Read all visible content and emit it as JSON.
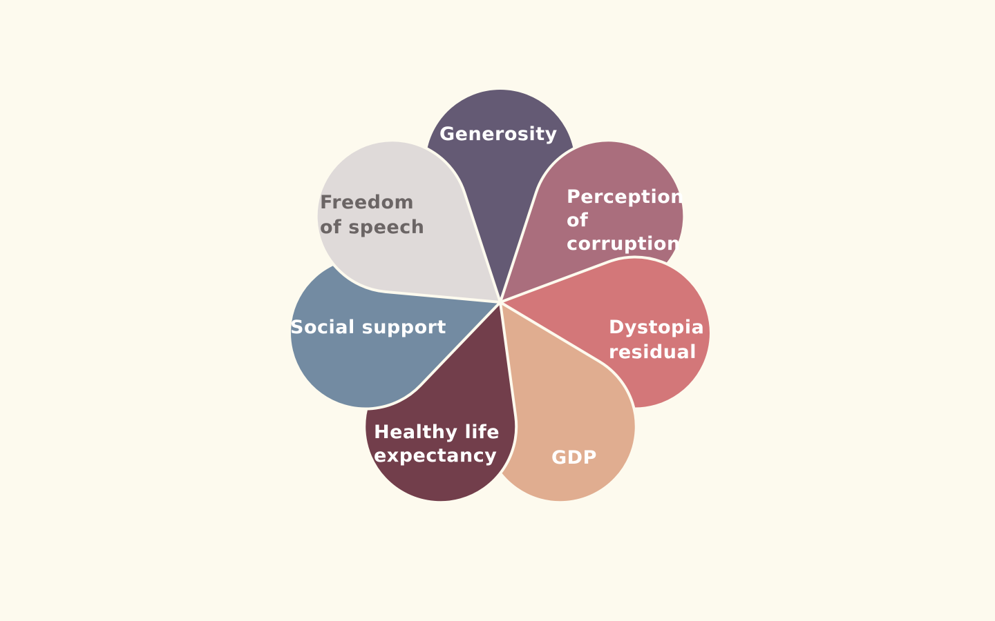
{
  "background_color": "#fdfaee",
  "petals": [
    {
      "id": "generosity",
      "lines": [
        "Generosity"
      ],
      "color": "#645a74",
      "text_color": "#ffffff"
    },
    {
      "id": "perception-corruption",
      "lines": [
        "Perception",
        "of",
        "corruption"
      ],
      "color": "#aa6e7d",
      "text_color": "#ffffff"
    },
    {
      "id": "dystopia-residual",
      "lines": [
        "Dystopia",
        "residual"
      ],
      "color": "#d37779",
      "text_color": "#ffffff"
    },
    {
      "id": "gdp",
      "lines": [
        "GDP"
      ],
      "color": "#e0ad90",
      "text_color": "#ffffff"
    },
    {
      "id": "healthy-life",
      "lines": [
        "Healthy life",
        "expectancy"
      ],
      "color": "#723e4b",
      "text_color": "#ffffff"
    },
    {
      "id": "social-support",
      "lines": [
        "Social support"
      ],
      "color": "#738ba2",
      "text_color": "#ffffff"
    },
    {
      "id": "freedom-speech",
      "lines": [
        "Freedom",
        "of speech"
      ],
      "color": "#dfdad9",
      "text_color": "#6b6565"
    }
  ]
}
